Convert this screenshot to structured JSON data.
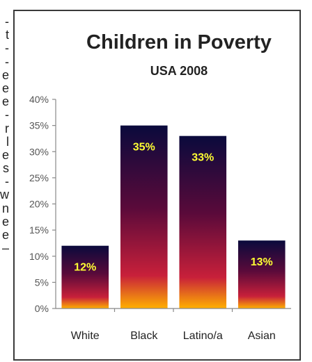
{
  "side_text_fragments": [
    "-",
    "t",
    "-",
    "-",
    "e",
    "e",
    "e",
    "-",
    "r",
    "l",
    "e",
    "s",
    "-",
    "w",
    "n",
    "e",
    "e",
    "–"
  ],
  "chart_data": {
    "type": "bar",
    "title": "Children in Poverty",
    "subtitle": "USA 2008",
    "xlabel": "",
    "ylabel": "",
    "categories": [
      "White",
      "Black",
      "Latino/a",
      "Asian"
    ],
    "values": [
      12,
      35,
      33,
      13
    ],
    "data_labels": [
      "12%",
      "35%",
      "33%",
      "13%"
    ],
    "y_ticks": [
      "0%",
      "5%",
      "10%",
      "15%",
      "20%",
      "25%",
      "30%",
      "35%",
      "40%"
    ],
    "ylim": [
      0,
      40
    ],
    "grid": false,
    "legend": "none",
    "colors": {
      "bar_top": "#0a0a3c",
      "bar_mid": "#5a0a3a",
      "bar_low": "#c8203a",
      "bar_bottom": "#ffb000",
      "label": "#ffff33",
      "axis": "#888888",
      "text": "#222222"
    }
  }
}
